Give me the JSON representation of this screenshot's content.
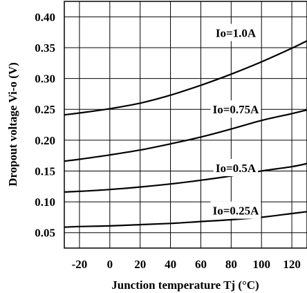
{
  "chart_data": {
    "type": "line",
    "title": "",
    "xlabel": "Junction temperature Tj (°C)",
    "ylabel": "Dropout voltage Vi-o (V)",
    "xlim": [
      -30,
      130
    ],
    "ylim": [
      0.025,
      0.425
    ],
    "xticks": [
      -20,
      0,
      20,
      40,
      60,
      80,
      100,
      120
    ],
    "xtick_labels": [
      "-20",
      "0",
      "20",
      "40",
      "60",
      "80",
      "100",
      "120"
    ],
    "yticks": [
      0.05,
      0.1,
      0.15,
      0.2,
      0.25,
      0.3,
      0.35,
      0.4
    ],
    "ytick_labels": [
      "0.05",
      "0.10",
      "0.15",
      "0.20",
      "0.25",
      "0.30",
      "0.35",
      "0.40"
    ],
    "grid": true,
    "x": [
      -30,
      -20,
      0,
      20,
      40,
      60,
      80,
      100,
      120,
      130
    ],
    "series": [
      {
        "name": "Io=1.0A",
        "values": [
          0.241,
          0.244,
          0.251,
          0.26,
          0.273,
          0.289,
          0.307,
          0.327,
          0.349,
          0.361
        ]
      },
      {
        "name": "Io=0.75A",
        "values": [
          0.166,
          0.169,
          0.176,
          0.184,
          0.194,
          0.205,
          0.218,
          0.232,
          0.243,
          0.249
        ]
      },
      {
        "name": "Io=0.5A",
        "values": [
          0.116,
          0.117,
          0.12,
          0.124,
          0.129,
          0.135,
          0.142,
          0.15,
          0.157,
          0.162
        ]
      },
      {
        "name": "Io=0.25A",
        "values": [
          0.059,
          0.06,
          0.061,
          0.063,
          0.065,
          0.068,
          0.071,
          0.075,
          0.081,
          0.084
        ]
      }
    ]
  }
}
